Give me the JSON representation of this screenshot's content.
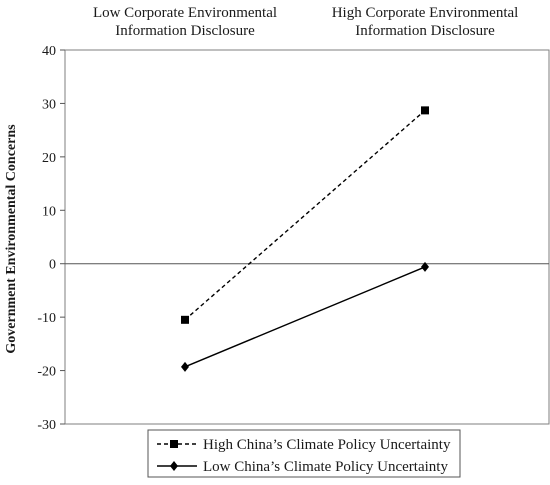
{
  "chart_data": {
    "type": "line",
    "categories": [
      [
        "Low Corporate Environmental",
        "Information Disclosure"
      ],
      [
        "High Corporate Environmental",
        "Information Disclosure"
      ]
    ],
    "ylabel": "Government Environmental Concerns",
    "ylim": [
      -30,
      40
    ],
    "yticks": [
      40,
      30,
      20,
      10,
      0,
      -10,
      -20,
      -30
    ],
    "grid": false,
    "legend_position": "bottom",
    "series": [
      {
        "name": "High China’s Climate Policy Uncertainty",
        "values": [
          -10.5,
          28.7
        ],
        "line": "dashed",
        "marker": "square",
        "color": "#000000"
      },
      {
        "name": "Low China’s Climate Policy Uncertainty",
        "values": [
          -19.3,
          -0.6
        ],
        "line": "solid",
        "marker": "diamond",
        "color": "#000000"
      }
    ]
  }
}
